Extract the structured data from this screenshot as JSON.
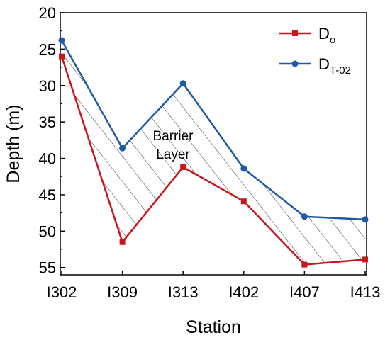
{
  "chart_data": {
    "type": "line",
    "categories": [
      "I302",
      "I309",
      "I313",
      "I402",
      "I407",
      "I413"
    ],
    "xlabel": "Station",
    "ylabel": "Depth (m)",
    "ylim": [
      20,
      56
    ],
    "y_inverted": true,
    "yticks": [
      20,
      25,
      30,
      35,
      40,
      45,
      50,
      55
    ],
    "grid": false,
    "legend_position": "top-right",
    "series": [
      {
        "name": "D",
        "name_subscript": "σ",
        "color": "#c8161d",
        "marker": "square",
        "values": [
          26.0,
          51.5,
          41.2,
          45.9,
          54.6,
          53.9
        ]
      },
      {
        "name": "D",
        "name_subscript": "T-02",
        "color": "#1f5aa6",
        "marker": "circle",
        "values": [
          23.8,
          38.6,
          29.7,
          41.4,
          48.0,
          48.4
        ]
      }
    ],
    "shaded_region": {
      "between_series": [
        0,
        1
      ],
      "pattern": "diagonal-hatch",
      "label_lines": [
        "Barrier",
        "Layer"
      ]
    }
  }
}
